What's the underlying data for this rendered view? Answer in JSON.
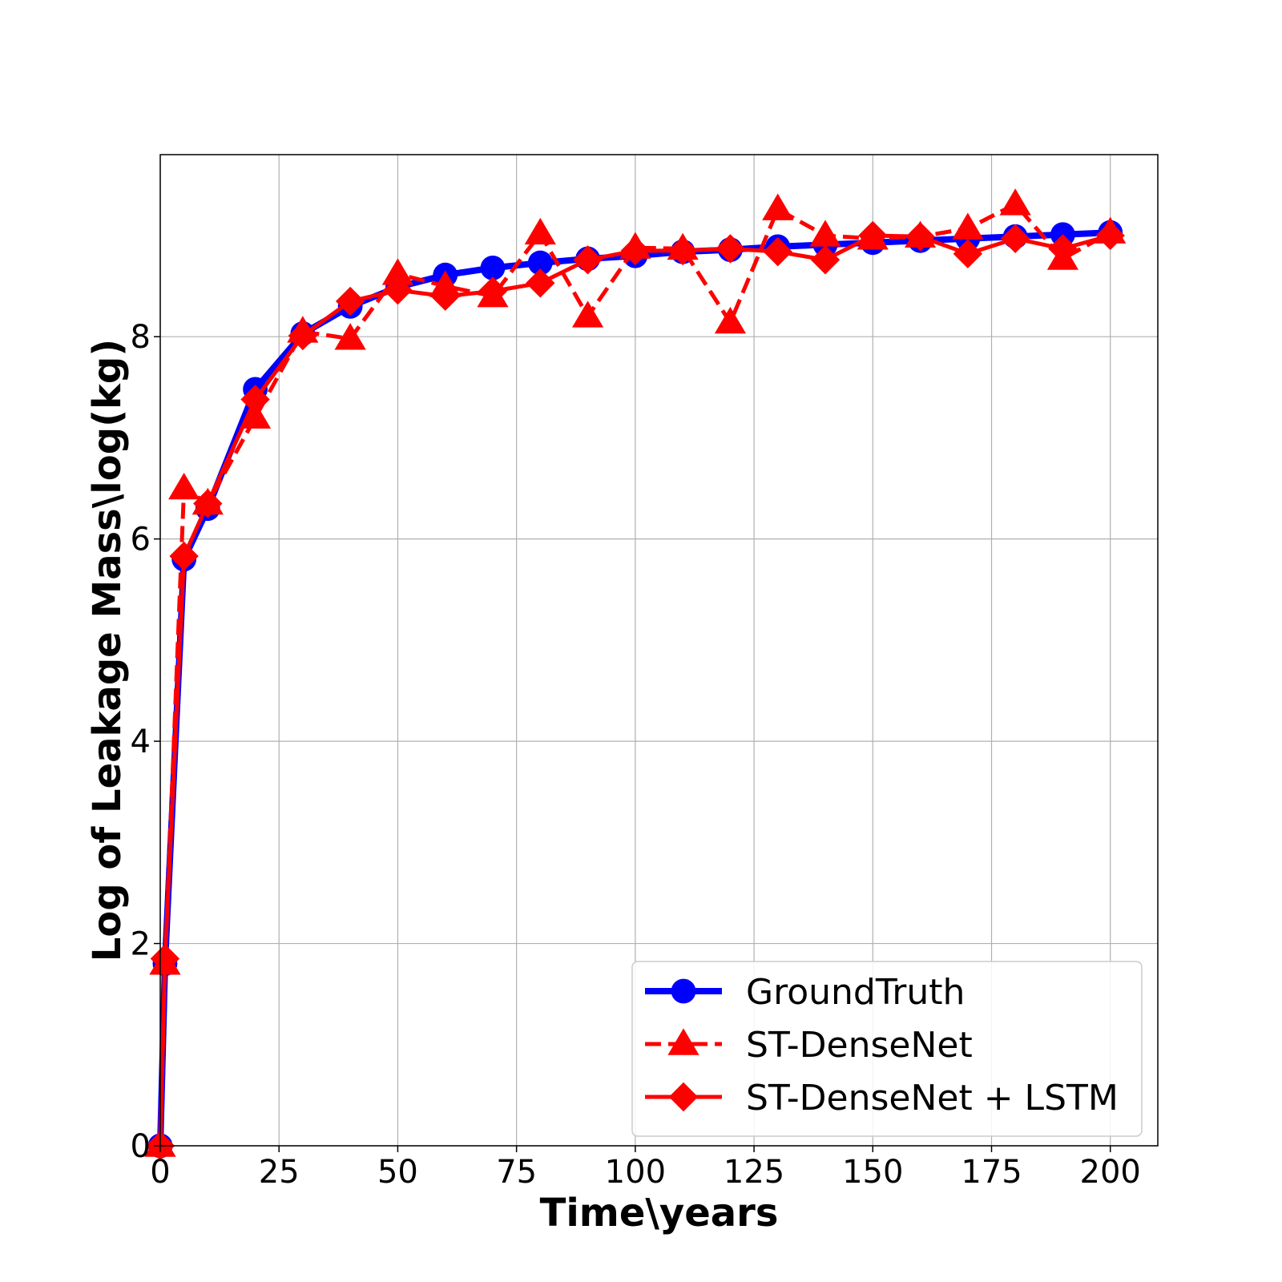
{
  "chart_data": {
    "type": "line",
    "title": "",
    "xlabel": "Time\\years",
    "ylabel": "Log of Leakage Mass\\log(kg)",
    "xlim": [
      0,
      210
    ],
    "ylim": [
      0,
      9.8
    ],
    "xticks": [
      0,
      25,
      50,
      75,
      100,
      125,
      150,
      175,
      200
    ],
    "yticks": [
      0,
      2,
      4,
      6,
      8
    ],
    "grid": true,
    "legend_position": "lower-right",
    "series": [
      {
        "name": "GroundTruth",
        "color": "#0000ff",
        "line_style": "solid",
        "marker": "circle",
        "x": [
          0,
          1,
          5,
          10,
          20,
          30,
          40,
          50,
          60,
          70,
          80,
          90,
          100,
          110,
          120,
          130,
          140,
          150,
          160,
          170,
          180,
          190,
          200
        ],
        "y": [
          0,
          1.8,
          5.8,
          6.3,
          7.48,
          8.03,
          8.3,
          8.49,
          8.61,
          8.68,
          8.73,
          8.77,
          8.8,
          8.84,
          8.86,
          8.89,
          8.91,
          8.93,
          8.95,
          8.97,
          8.99,
          9.01,
          9.03
        ]
      },
      {
        "name": "ST-DenseNet",
        "color": "#ff0000",
        "line_style": "dashed",
        "marker": "triangle",
        "x": [
          0,
          1,
          5,
          10,
          20,
          30,
          40,
          50,
          60,
          70,
          80,
          90,
          100,
          110,
          120,
          130,
          140,
          150,
          160,
          170,
          180,
          190,
          200
        ],
        "y": [
          0,
          1.8,
          6.5,
          6.35,
          7.2,
          8.05,
          7.98,
          8.62,
          8.5,
          8.4,
          9.02,
          8.2,
          8.88,
          8.87,
          8.14,
          9.26,
          9.0,
          8.97,
          8.99,
          9.07,
          9.31,
          8.77,
          9.03
        ]
      },
      {
        "name": "ST-DenseNet + LSTM",
        "color": "#ff0000",
        "line_style": "solid",
        "marker": "diamond",
        "x": [
          0,
          1,
          5,
          10,
          20,
          30,
          40,
          50,
          60,
          70,
          80,
          90,
          100,
          110,
          120,
          130,
          140,
          150,
          160,
          170,
          180,
          190,
          200
        ],
        "y": [
          0,
          1.85,
          5.83,
          6.35,
          7.38,
          8.01,
          8.35,
          8.46,
          8.4,
          8.45,
          8.53,
          8.76,
          8.85,
          8.85,
          8.87,
          8.84,
          8.76,
          9.0,
          8.99,
          8.82,
          8.97,
          8.87,
          9.0
        ]
      }
    ]
  }
}
